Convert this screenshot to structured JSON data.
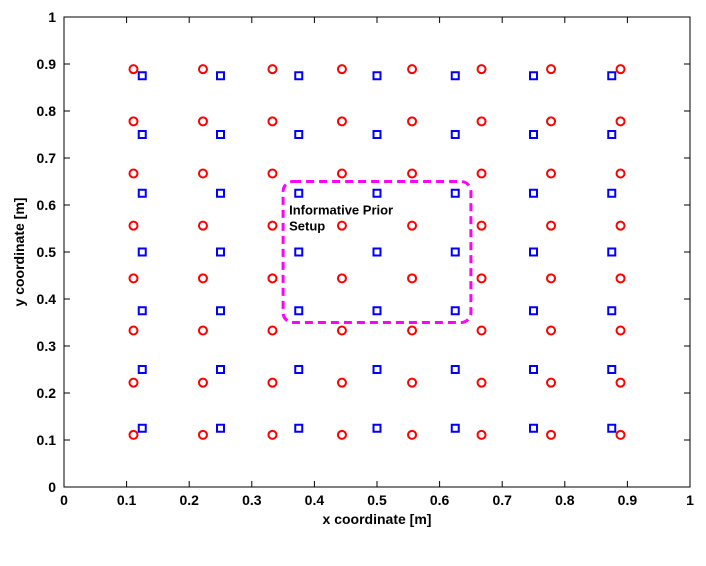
{
  "chart_data": {
    "type": "scatter",
    "title": "",
    "xlabel": "x coordinate [m]",
    "ylabel": "y coordinate [m]",
    "xlim": [
      0,
      1
    ],
    "ylim": [
      0,
      1
    ],
    "xticks": [
      "0",
      "0.1",
      "0.2",
      "0.3",
      "0.4",
      "0.5",
      "0.6",
      "0.7",
      "0.8",
      "0.9",
      "1"
    ],
    "yticks": [
      "0",
      "0.1",
      "0.2",
      "0.3",
      "0.4",
      "0.5",
      "0.6",
      "0.7",
      "0.8",
      "0.9",
      "1"
    ],
    "grid": false,
    "series": [
      {
        "marker": "circle",
        "color": "#ff0000",
        "x_values": [
          0.111,
          0.222,
          0.333,
          0.444,
          0.556,
          0.667,
          0.778,
          0.889
        ],
        "y_values": [
          0.111,
          0.222,
          0.333,
          0.444,
          0.556,
          0.667,
          0.778,
          0.889
        ],
        "layout": "grid"
      },
      {
        "marker": "square",
        "color": "#0000ff",
        "x_values": [
          0.125,
          0.25,
          0.375,
          0.5,
          0.625,
          0.75,
          0.875
        ],
        "y_values": [
          0.125,
          0.25,
          0.375,
          0.5,
          0.625,
          0.75,
          0.875
        ],
        "layout": "grid"
      }
    ],
    "annotations": [
      {
        "text_lines": [
          "Informative Prior",
          "Setup"
        ],
        "region": {
          "x0": 0.35,
          "x1": 0.65,
          "y0": 0.35,
          "y1": 0.65
        },
        "box_color": "#ff00ff",
        "box_style": "dashed"
      }
    ]
  }
}
